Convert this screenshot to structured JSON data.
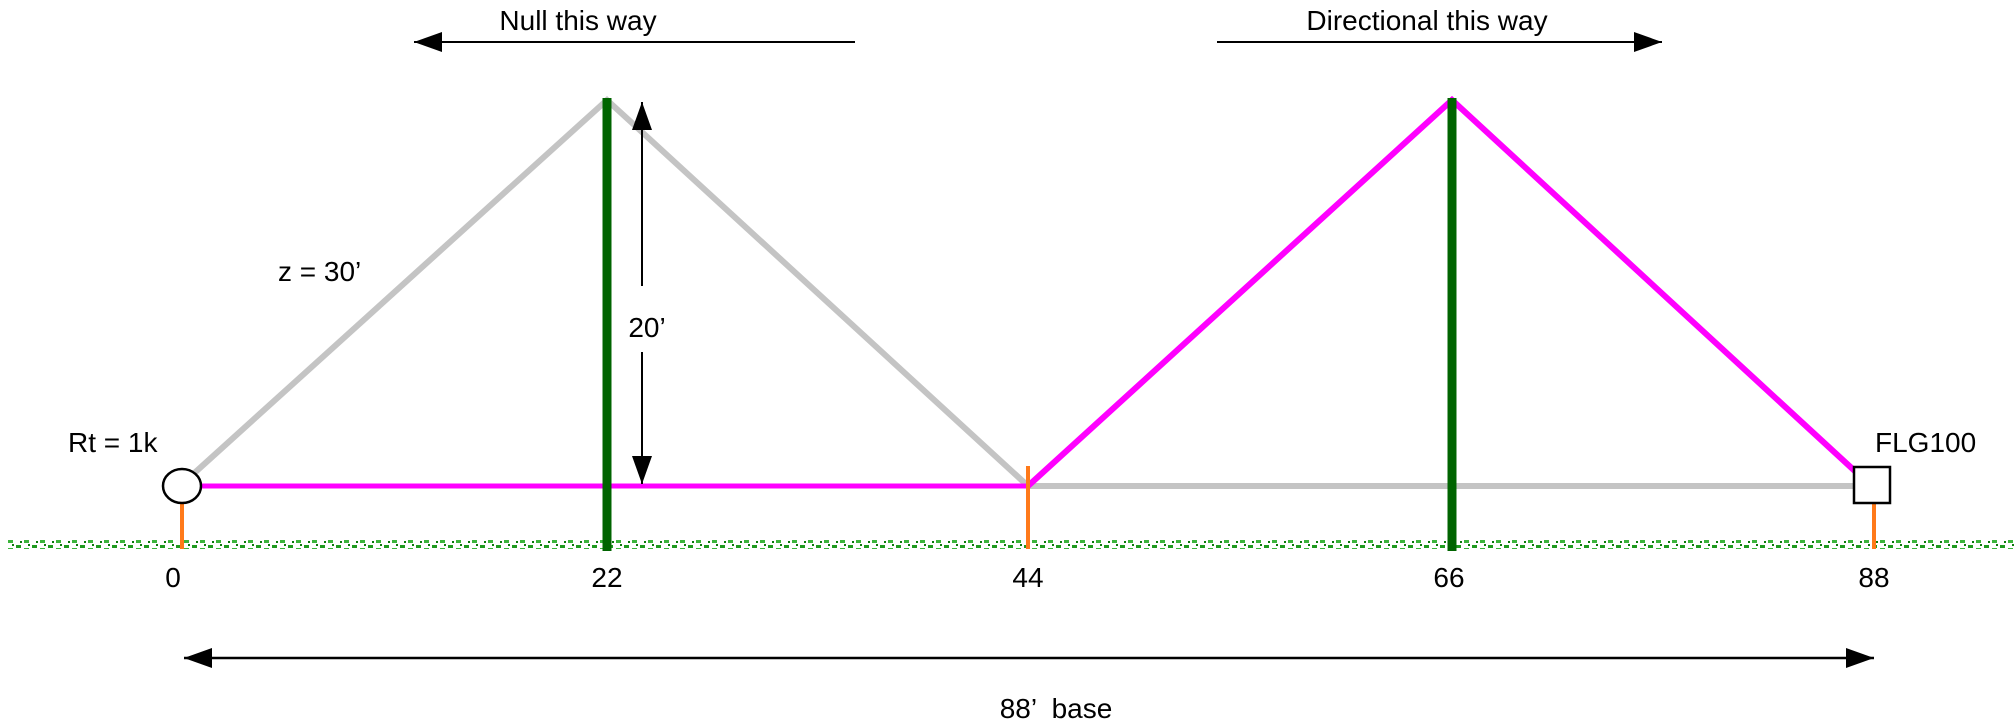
{
  "header": {
    "null_label": "Null this way",
    "directional_label": "Directional this way"
  },
  "labels": {
    "z_label": "z = 30’",
    "height_label": "20’",
    "termination_label": "Rt = 1k",
    "feed_label": "FLG100",
    "base_label": "88’  base"
  },
  "axis": {
    "ticks": [
      "0",
      "22",
      "44",
      "66",
      "88"
    ]
  },
  "colors": {
    "inactive_wire": "#c4c4c4",
    "active_wire": "#ff00ff",
    "mast": "#006400",
    "stake": "#ff7a1a",
    "ground": "#2e8b2e"
  }
}
